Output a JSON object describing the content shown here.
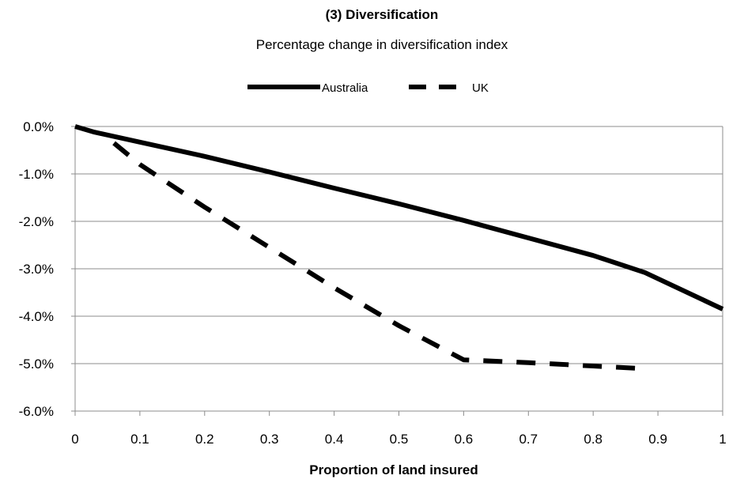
{
  "chart_data": {
    "type": "line",
    "title": "(3) Diversification",
    "subtitle": "Percentage change in diversification index",
    "xlabel": "Proportion of land insured",
    "ylabel": "",
    "xlim": [
      0,
      1
    ],
    "ylim": [
      -6.0,
      0.0
    ],
    "x_ticks": [
      0,
      0.1,
      0.2,
      0.3,
      0.4,
      0.5,
      0.6,
      0.7,
      0.8,
      0.9,
      1
    ],
    "x_tick_labels": [
      "0",
      "0.1",
      "0.2",
      "0.3",
      "0.4",
      "0.5",
      "0.6",
      "0.7",
      "0.8",
      "0.9",
      "1"
    ],
    "y_ticks": [
      0,
      -1,
      -2,
      -3,
      -4,
      -5,
      -6
    ],
    "y_tick_labels": [
      "0.0%",
      "-1.0%",
      "-2.0%",
      "-3.0%",
      "-4.0%",
      "-5.0%",
      "-6.0%"
    ],
    "grid": "horizontal",
    "legend_position": "top",
    "series": [
      {
        "name": "Australia",
        "style": "solid",
        "color": "#000000",
        "x": [
          0,
          0.03,
          0.1,
          0.2,
          0.3,
          0.4,
          0.5,
          0.6,
          0.7,
          0.8,
          0.88,
          1
        ],
        "values": [
          0.0,
          -0.12,
          -0.33,
          -0.63,
          -0.96,
          -1.3,
          -1.63,
          -1.98,
          -2.35,
          -2.72,
          -3.08,
          -3.85
        ]
      },
      {
        "name": "UK",
        "style": "dashed",
        "color": "#000000",
        "x": [
          0.06,
          0.1,
          0.2,
          0.3,
          0.4,
          0.5,
          0.6,
          0.7,
          0.8,
          0.87,
          0.88
        ],
        "values": [
          -0.35,
          -0.8,
          -1.7,
          -2.55,
          -3.4,
          -4.2,
          -4.92,
          -4.98,
          -5.05,
          -5.1,
          -5.2
        ]
      }
    ]
  }
}
